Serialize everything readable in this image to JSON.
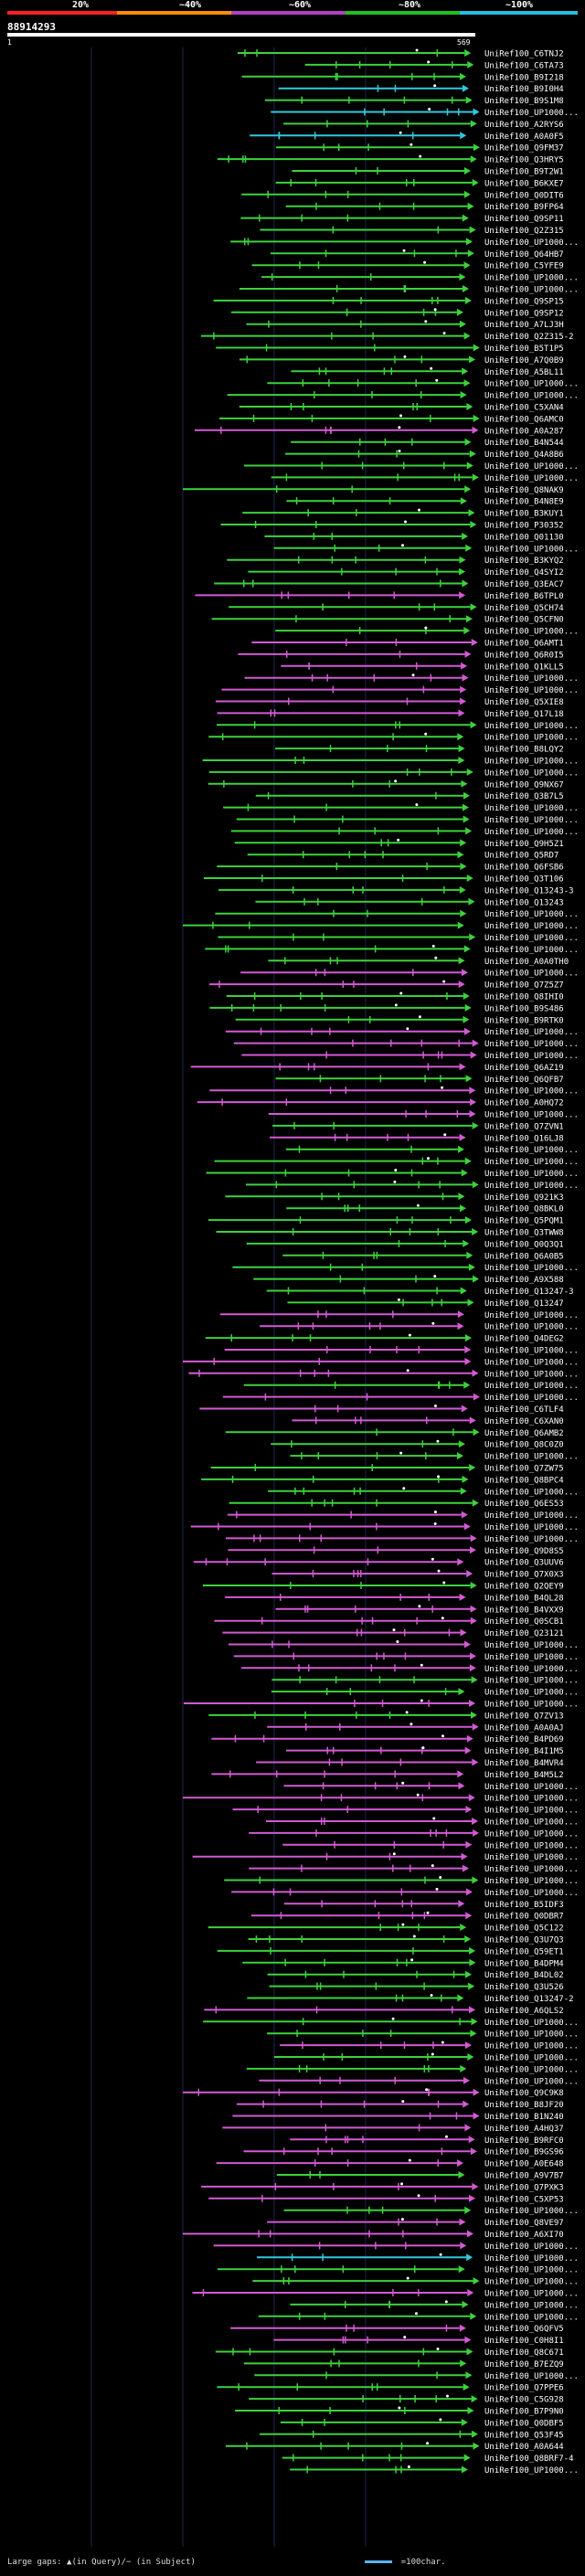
{
  "legend": {
    "ticks": [
      {
        "label": "20%",
        "color": "#ff2020"
      },
      {
        "label": "~40%",
        "color": "#ff8c00"
      },
      {
        "label": "~60%",
        "color": "#b040c0"
      },
      {
        "label": "~80%",
        "color": "#20c020"
      },
      {
        "label": "~100%",
        "color": "#20c0e0"
      }
    ]
  },
  "query": {
    "id": "88914293",
    "start": "1",
    "end": "569"
  },
  "colors": {
    "green": "#3cd23c",
    "magenta": "#d25ad2",
    "cyan": "#32c8dc",
    "white": "#ffffff",
    "grid": "#1e2850",
    "label": "#ffffff"
  },
  "hits": [
    {
      "label": "UniRef100_C6TNJ2",
      "color": "green"
    },
    {
      "label": "UniRef100_C6TA73",
      "color": "green"
    },
    {
      "label": "UniRef100_B9I218",
      "color": "green"
    },
    {
      "label": "UniRef100_B9I0H4",
      "color": "cyan"
    },
    {
      "label": "UniRef100_B9S1M8",
      "color": "green"
    },
    {
      "label": "UniRef100_UP1000...",
      "color": "cyan"
    },
    {
      "label": "UniRef100_A2RYS6",
      "color": "green"
    },
    {
      "label": "UniRef100_A0A0F5",
      "color": "cyan"
    },
    {
      "label": "UniRef100_Q9FM37",
      "color": "green"
    },
    {
      "label": "UniRef100_Q3HRY5",
      "color": "green"
    },
    {
      "label": "UniRef100_B9T2W1",
      "color": "green"
    },
    {
      "label": "UniRef100_B6KXE7",
      "color": "green"
    },
    {
      "label": "UniRef100_Q0DIT6",
      "color": "green"
    },
    {
      "label": "UniRef100_B9FP64",
      "color": "green"
    },
    {
      "label": "UniRef100_Q9SP11",
      "color": "green"
    },
    {
      "label": "UniRef100_Q2Z315",
      "color": "green"
    },
    {
      "label": "UniRef100_UP1000...",
      "color": "green"
    },
    {
      "label": "UniRef100_Q64HB7",
      "color": "green"
    },
    {
      "label": "UniRef100_C5YFE9",
      "color": "green"
    },
    {
      "label": "UniRef100_UP1000...",
      "color": "green"
    },
    {
      "label": "UniRef100_UP1000...",
      "color": "green"
    },
    {
      "label": "UniRef100_Q9SP15",
      "color": "green"
    },
    {
      "label": "UniRef100_Q9SP12",
      "color": "green"
    },
    {
      "label": "UniRef100_A7LJ3H",
      "color": "green"
    },
    {
      "label": "UniRef100_Q2Z315-2",
      "color": "green"
    },
    {
      "label": "UniRef100_B5T1P5",
      "color": "green"
    },
    {
      "label": "UniRef100_A7Q0B9",
      "color": "green"
    },
    {
      "label": "UniRef100_A5BL11",
      "color": "green"
    },
    {
      "label": "UniRef100_UP1000...",
      "color": "green"
    },
    {
      "label": "UniRef100_UP1000...",
      "color": "green"
    },
    {
      "label": "UniRef100_C5XAN4",
      "color": "green"
    },
    {
      "label": "UniRef100_Q6AMC0",
      "color": "green"
    },
    {
      "label": "UniRef100_A0A287",
      "color": "magenta"
    },
    {
      "label": "UniRef100_B4N544",
      "color": "green"
    },
    {
      "label": "UniRef100_Q4A8B6",
      "color": "green"
    },
    {
      "label": "UniRef100_UP1000...",
      "color": "green"
    },
    {
      "label": "UniRef100_UP1000...",
      "color": "green"
    },
    {
      "label": "UniRef100_Q8NAK9",
      "color": "green"
    },
    {
      "label": "UniRef100_B4N8E9",
      "color": "green"
    },
    {
      "label": "UniRef100_B3KUY1",
      "color": "green"
    },
    {
      "label": "UniRef100_P30352",
      "color": "green"
    },
    {
      "label": "UniRef100_Q01130",
      "color": "green"
    },
    {
      "label": "UniRef100_UP1000...",
      "color": "green"
    },
    {
      "label": "UniRef100_B3KYQ2",
      "color": "green"
    },
    {
      "label": "UniRef100_Q4SYI2",
      "color": "green"
    },
    {
      "label": "UniRef100_Q3EAC7",
      "color": "green"
    },
    {
      "label": "UniRef100_B6TPL0",
      "color": "magenta"
    },
    {
      "label": "UniRef100_Q5CH74",
      "color": "green"
    },
    {
      "label": "UniRef100_Q5CFN0",
      "color": "green"
    },
    {
      "label": "UniRef100_UP1000...",
      "color": "green"
    },
    {
      "label": "UniRef100_Q6AMT1",
      "color": "magenta"
    },
    {
      "label": "UniRef100_Q6R0I5",
      "color": "magenta"
    },
    {
      "label": "UniRef100_Q1KLL5",
      "color": "magenta"
    },
    {
      "label": "UniRef100_UP1000...",
      "color": "magenta"
    },
    {
      "label": "UniRef100_UP1000...",
      "color": "magenta"
    },
    {
      "label": "UniRef100_Q5XIE8",
      "color": "magenta"
    },
    {
      "label": "UniRef100_Q17L18",
      "color": "magenta"
    },
    {
      "label": "UniRef100_UP1000...",
      "color": "green"
    },
    {
      "label": "UniRef100_UP1000...",
      "color": "green"
    },
    {
      "label": "UniRef100_B8LQY2",
      "color": "green"
    },
    {
      "label": "UniRef100_UP1000...",
      "color": "green"
    },
    {
      "label": "UniRef100_UP1000...",
      "color": "green"
    },
    {
      "label": "UniRef100_Q9NX67",
      "color": "green"
    },
    {
      "label": "UniRef100_Q3B7L5",
      "color": "green"
    },
    {
      "label": "UniRef100_UP1000...",
      "color": "green"
    },
    {
      "label": "UniRef100_UP1000...",
      "color": "green"
    },
    {
      "label": "UniRef100_UP1000...",
      "color": "green"
    },
    {
      "label": "UniRef100_Q9H5Z1",
      "color": "green"
    },
    {
      "label": "UniRef100_Q5RD7",
      "color": "green"
    },
    {
      "label": "UniRef100_Q6FSB6",
      "color": "green"
    },
    {
      "label": "UniRef100_Q3T106",
      "color": "green"
    },
    {
      "label": "UniRef100_Q13243-3",
      "color": "green"
    },
    {
      "label": "UniRef100_Q13243",
      "color": "green"
    },
    {
      "label": "UniRef100_UP1000...",
      "color": "green"
    },
    {
      "label": "UniRef100_UP1000...",
      "color": "green"
    },
    {
      "label": "UniRef100_UP1000...",
      "color": "green"
    },
    {
      "label": "UniRef100_UP1000...",
      "color": "green"
    },
    {
      "label": "UniRef100_A0A0TH0",
      "color": "green"
    },
    {
      "label": "UniRef100_UP1000...",
      "color": "magenta"
    },
    {
      "label": "UniRef100_Q7Z5Z7",
      "color": "magenta"
    },
    {
      "label": "UniRef100_Q8IHI0",
      "color": "green"
    },
    {
      "label": "UniRef100_B9S486",
      "color": "green"
    },
    {
      "label": "UniRef100_B9RTK0",
      "color": "green"
    },
    {
      "label": "UniRef100_UP1000...",
      "color": "magenta"
    },
    {
      "label": "UniRef100_UP1000...",
      "color": "magenta"
    },
    {
      "label": "UniRef100_UP1000...",
      "color": "magenta"
    },
    {
      "label": "UniRef100_Q6AZ19",
      "color": "magenta"
    },
    {
      "label": "UniRef100_Q6QFB7",
      "color": "green"
    },
    {
      "label": "UniRef100_UP1000...",
      "color": "magenta"
    },
    {
      "label": "UniRef100_A0HQ72",
      "color": "magenta"
    },
    {
      "label": "UniRef100_UP1000...",
      "color": "magenta"
    },
    {
      "label": "UniRef100_Q7ZVN1",
      "color": "green"
    },
    {
      "label": "UniRef100_Q16LJ8",
      "color": "magenta"
    },
    {
      "label": "UniRef100_UP1000...",
      "color": "green"
    },
    {
      "label": "UniRef100_UP1000...",
      "color": "green"
    },
    {
      "label": "UniRef100_UP1000...",
      "color": "green"
    },
    {
      "label": "UniRef100_UP1000...",
      "color": "green"
    },
    {
      "label": "UniRef100_Q921K3",
      "color": "green"
    },
    {
      "label": "UniRef100_Q8BKL0",
      "color": "green"
    },
    {
      "label": "UniRef100_Q5PQM1",
      "color": "green"
    },
    {
      "label": "UniRef100_Q3TWW8",
      "color": "green"
    },
    {
      "label": "UniRef100_Q0Q3Q1",
      "color": "green"
    },
    {
      "label": "UniRef100_Q6A0B5",
      "color": "green"
    },
    {
      "label": "UniRef100_UP1000...",
      "color": "green"
    },
    {
      "label": "UniRef100_A9X588",
      "color": "green"
    },
    {
      "label": "UniRef100_Q13247-3",
      "color": "green"
    },
    {
      "label": "UniRef100_Q13247",
      "color": "green"
    },
    {
      "label": "UniRef100_UP1000...",
      "color": "magenta"
    },
    {
      "label": "UniRef100_UP1000...",
      "color": "magenta"
    },
    {
      "label": "UniRef100_Q4DEG2",
      "color": "green"
    },
    {
      "label": "UniRef100_UP1000...",
      "color": "magenta"
    },
    {
      "label": "UniRef100_UP1000...",
      "color": "magenta"
    },
    {
      "label": "UniRef100_UP1000...",
      "color": "magenta"
    },
    {
      "label": "UniRef100_UP1000...",
      "color": "green"
    },
    {
      "label": "UniRef100_UP1000...",
      "color": "magenta"
    },
    {
      "label": "UniRef100_C6TLF4",
      "color": "magenta"
    },
    {
      "label": "UniRef100_C6XAN0",
      "color": "magenta"
    },
    {
      "label": "UniRef100_Q6AMB2",
      "color": "green"
    },
    {
      "label": "UniRef100_Q8C0Z0",
      "color": "green"
    },
    {
      "label": "UniRef100_UP1000...",
      "color": "green"
    },
    {
      "label": "UniRef100_Q7ZW75",
      "color": "green"
    },
    {
      "label": "UniRef100_Q8BPC4",
      "color": "green"
    },
    {
      "label": "UniRef100_UP1000...",
      "color": "green"
    },
    {
      "label": "UniRef100_Q6ES53",
      "color": "green"
    },
    {
      "label": "UniRef100_UP1000...",
      "color": "magenta"
    },
    {
      "label": "UniRef100_UP1000...",
      "color": "magenta"
    },
    {
      "label": "UniRef100_UP1000...",
      "color": "magenta"
    },
    {
      "label": "UniRef100_Q9D8S5",
      "color": "magenta"
    },
    {
      "label": "UniRef100_Q3UUV6",
      "color": "magenta"
    },
    {
      "label": "UniRef100_Q7X0X3",
      "color": "magenta"
    },
    {
      "label": "UniRef100_Q2QEY9",
      "color": "green"
    },
    {
      "label": "UniRef100_B4QL28",
      "color": "magenta"
    },
    {
      "label": "UniRef100_B4VXX9",
      "color": "magenta"
    },
    {
      "label": "UniRef100_Q0SCB1",
      "color": "magenta"
    },
    {
      "label": "UniRef100_Q23121",
      "color": "magenta"
    },
    {
      "label": "UniRef100_UP1000...",
      "color": "magenta"
    },
    {
      "label": "UniRef100_UP1000...",
      "color": "magenta"
    },
    {
      "label": "UniRef100_UP1000...",
      "color": "magenta"
    },
    {
      "label": "UniRef100_UP1000...",
      "color": "green"
    },
    {
      "label": "UniRef100_UP1000...",
      "color": "green"
    },
    {
      "label": "UniRef100_UP1000...",
      "color": "magenta"
    },
    {
      "label": "UniRef100_Q7ZV13",
      "color": "green"
    },
    {
      "label": "UniRef100_A0A0AJ",
      "color": "magenta"
    },
    {
      "label": "UniRef100_B4PD69",
      "color": "magenta"
    },
    {
      "label": "UniRef100_B4I1M5",
      "color": "magenta"
    },
    {
      "label": "UniRef100_B4MVR4",
      "color": "magenta"
    },
    {
      "label": "UniRef100_B4M5L2",
      "color": "magenta"
    },
    {
      "label": "UniRef100_UP1000...",
      "color": "magenta"
    },
    {
      "label": "UniRef100_UP1000...",
      "color": "magenta"
    },
    {
      "label": "UniRef100_UP1000...",
      "color": "magenta"
    },
    {
      "label": "UniRef100_UP1000...",
      "color": "magenta"
    },
    {
      "label": "UniRef100_UP1000...",
      "color": "magenta"
    },
    {
      "label": "UniRef100_UP1000...",
      "color": "magenta"
    },
    {
      "label": "UniRef100_UP1000...",
      "color": "magenta"
    },
    {
      "label": "UniRef100_UP1000...",
      "color": "magenta"
    },
    {
      "label": "UniRef100_UP1000...",
      "color": "green"
    },
    {
      "label": "UniRef100_UP1000...",
      "color": "magenta"
    },
    {
      "label": "UniRef100_B5IDF3",
      "color": "magenta"
    },
    {
      "label": "UniRef100_Q0DBR7",
      "color": "magenta"
    },
    {
      "label": "UniRef100_Q5C122",
      "color": "green"
    },
    {
      "label": "UniRef100_Q3U7Q3",
      "color": "green"
    },
    {
      "label": "UniRef100_Q59ET1",
      "color": "green"
    },
    {
      "label": "UniRef100_B4DPM4",
      "color": "green"
    },
    {
      "label": "UniRef100_B4DL02",
      "color": "green"
    },
    {
      "label": "UniRef100_Q3U526",
      "color": "green"
    },
    {
      "label": "UniRef100_Q13247-2",
      "color": "green"
    },
    {
      "label": "UniRef100_A6QLS2",
      "color": "magenta"
    },
    {
      "label": "UniRef100_UP1000...",
      "color": "green"
    },
    {
      "label": "UniRef100_UP1000...",
      "color": "green"
    },
    {
      "label": "UniRef100_UP1000...",
      "color": "magenta"
    },
    {
      "label": "UniRef100_UP1000...",
      "color": "green"
    },
    {
      "label": "UniRef100_UP1000...",
      "color": "green"
    },
    {
      "label": "UniRef100_UP1000...",
      "color": "magenta"
    },
    {
      "label": "UniRef100_Q9C9K8",
      "color": "magenta"
    },
    {
      "label": "UniRef100_B8JF20",
      "color": "magenta"
    },
    {
      "label": "UniRef100_B1N240",
      "color": "magenta"
    },
    {
      "label": "UniRef100_A4HQ37",
      "color": "magenta"
    },
    {
      "label": "UniRef100_B9RFC0",
      "color": "magenta"
    },
    {
      "label": "UniRef100_B9GS96",
      "color": "magenta"
    },
    {
      "label": "UniRef100_A0E648",
      "color": "magenta"
    },
    {
      "label": "UniRef100_A9V7B7",
      "color": "green"
    },
    {
      "label": "UniRef100_Q7PXK3",
      "color": "magenta"
    },
    {
      "label": "UniRef100_C5XP53",
      "color": "magenta"
    },
    {
      "label": "UniRef100_UP1000...",
      "color": "green"
    },
    {
      "label": "UniRef100_Q8VE97",
      "color": "magenta"
    },
    {
      "label": "UniRef100_A6XI70",
      "color": "magenta"
    },
    {
      "label": "UniRef100_UP1000...",
      "color": "magenta"
    },
    {
      "label": "UniRef100_UP1000...",
      "color": "cyan"
    },
    {
      "label": "UniRef100_UP1000...",
      "color": "green"
    },
    {
      "label": "UniRef100_UP1000...",
      "color": "green"
    },
    {
      "label": "UniRef100_UP1000...",
      "color": "magenta"
    },
    {
      "label": "UniRef100_UP1000...",
      "color": "green"
    },
    {
      "label": "UniRef100_UP1000...",
      "color": "green"
    },
    {
      "label": "UniRef100_Q6QFV5",
      "color": "magenta"
    },
    {
      "label": "UniRef100_C0H8I1",
      "color": "magenta"
    },
    {
      "label": "UniRef100_Q8C671",
      "color": "green"
    },
    {
      "label": "UniRef100_B7EZQ9",
      "color": "green"
    },
    {
      "label": "UniRef100_UP1000...",
      "color": "green"
    },
    {
      "label": "UniRef100_Q7PPE6",
      "color": "green"
    },
    {
      "label": "UniRef100_C5G928",
      "color": "green"
    },
    {
      "label": "UniRef100_B7P9N0",
      "color": "green"
    },
    {
      "label": "UniRef100_Q0DBF5",
      "color": "green"
    },
    {
      "label": "UniRef100_Q53F45",
      "color": "green"
    },
    {
      "label": "UniRef100_A0A644",
      "color": "green"
    },
    {
      "label": "UniRef100_Q8BRF7-4",
      "color": "green"
    },
    {
      "label": "UniRef100_UP1000...",
      "color": "green"
    }
  ],
  "footer": {
    "large_gaps": "Large gaps: ▲(in Query)/− (in Subject)",
    "scale": "=100char."
  }
}
